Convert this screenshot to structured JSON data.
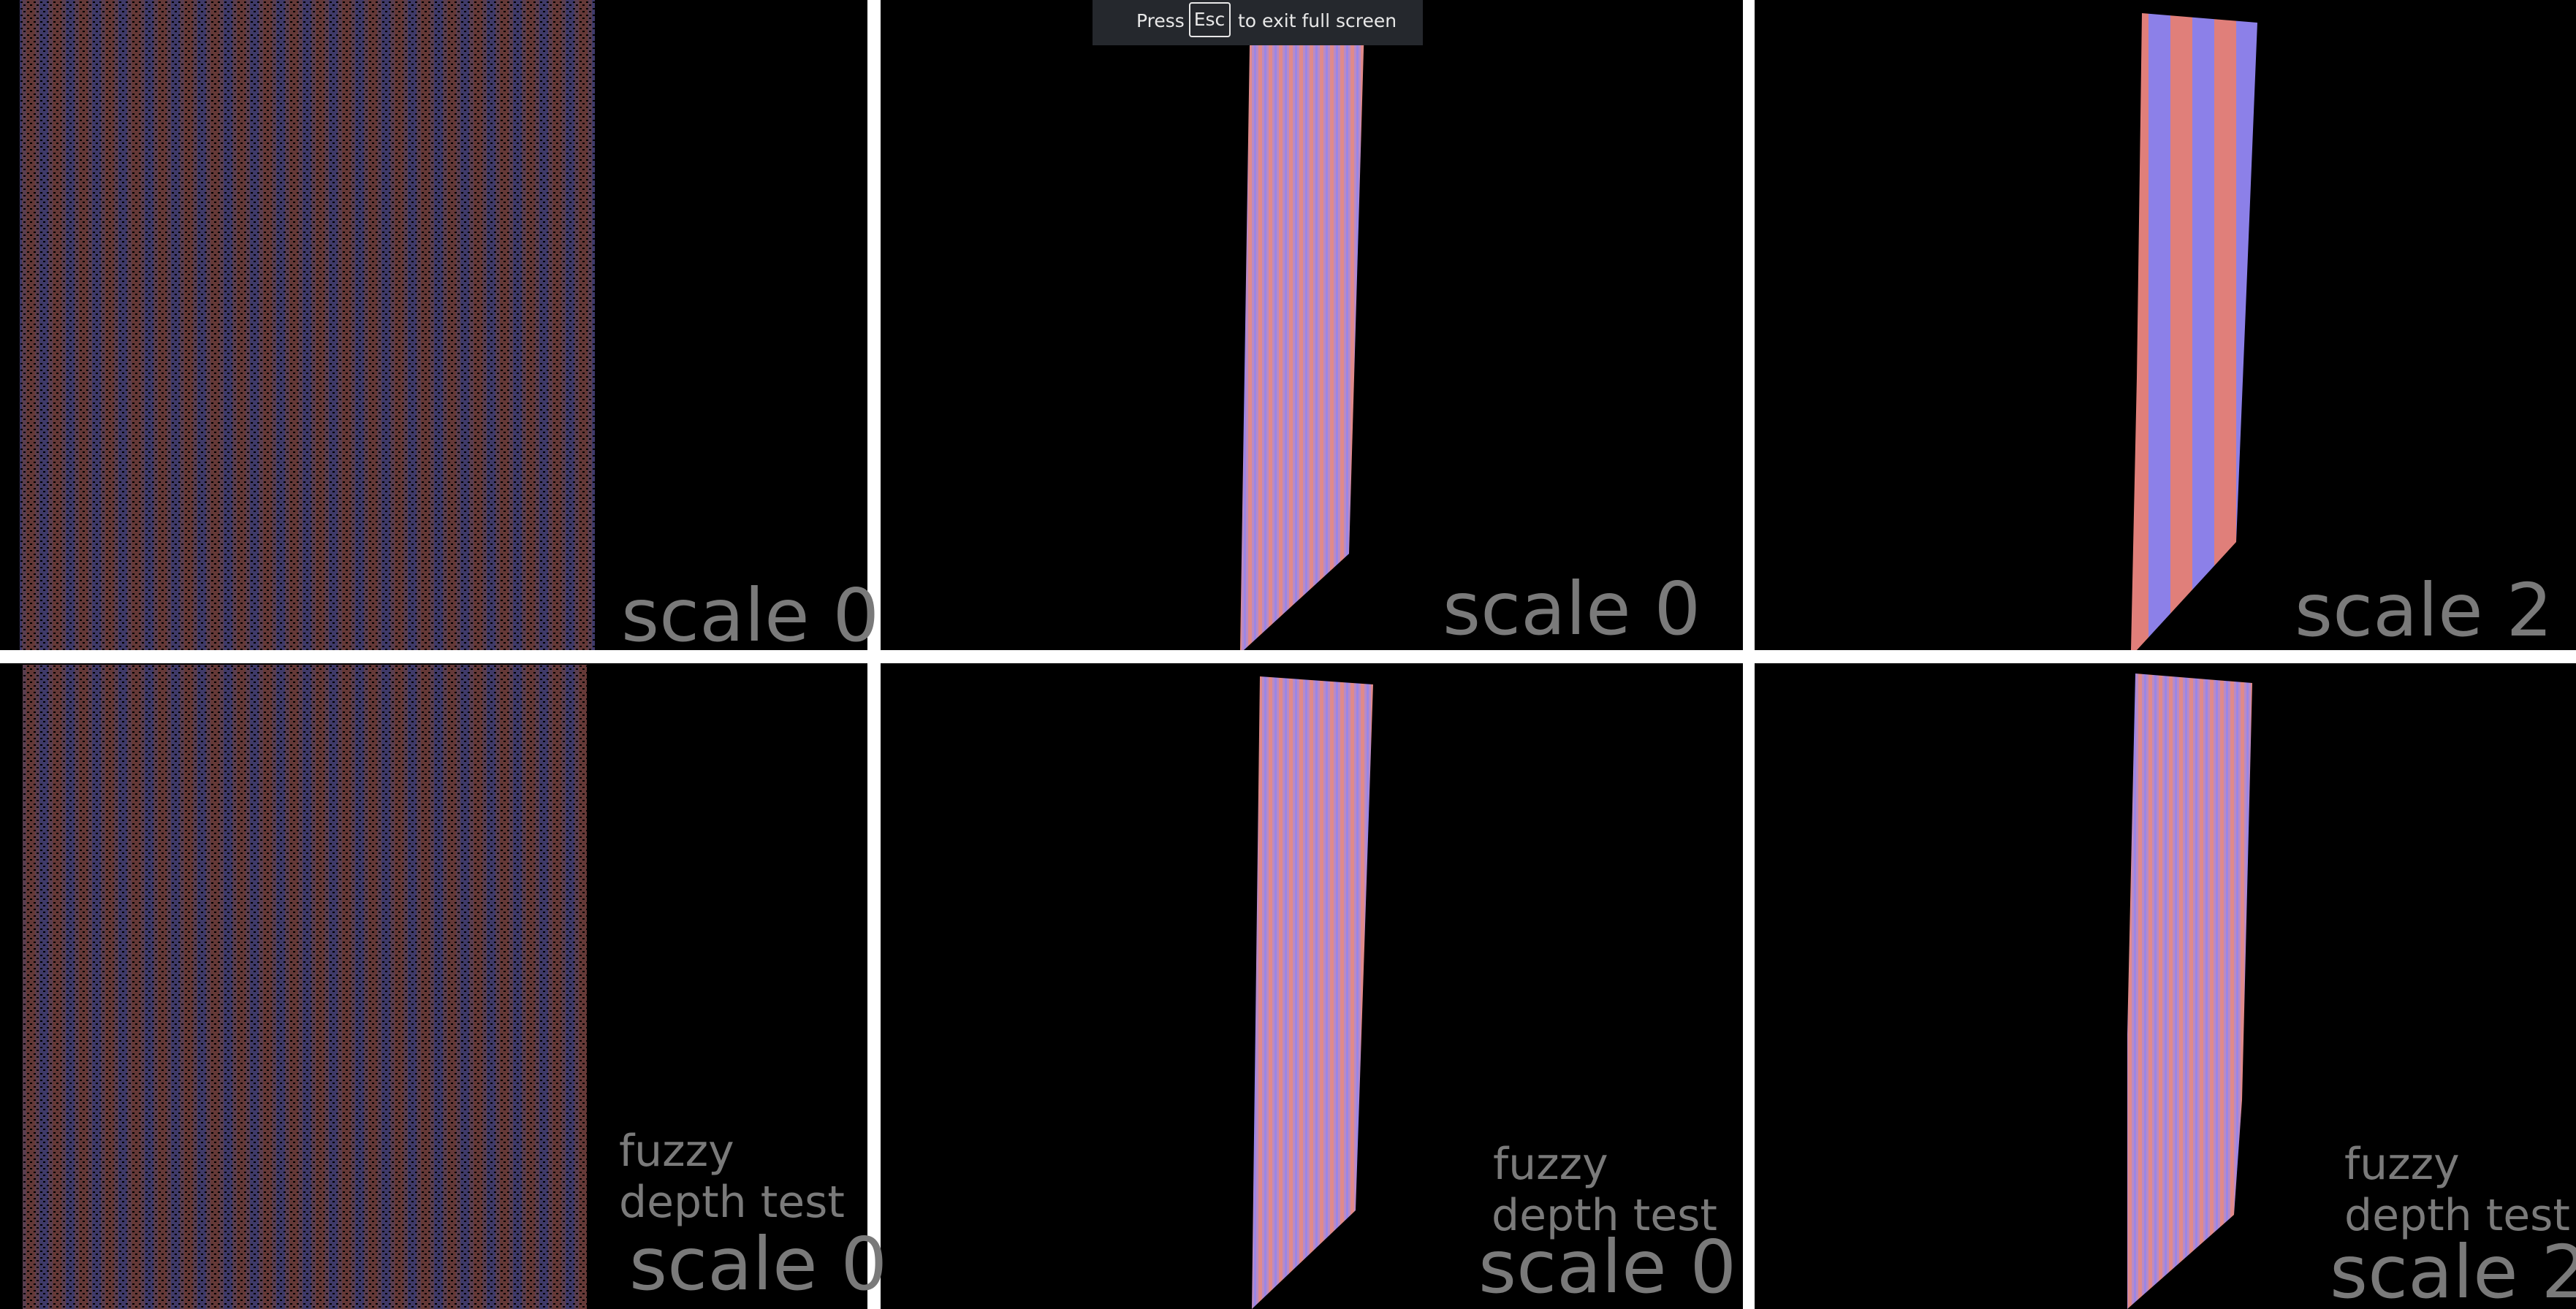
{
  "fullscreen_notice": {
    "before": "Press",
    "key": "Esc",
    "after": "to exit full screen"
  },
  "panels": [
    {
      "lines": [
        "scale 0"
      ]
    },
    {
      "lines": [
        "scale 0"
      ]
    },
    {
      "lines": [
        "scale 2"
      ]
    },
    {
      "lines": [
        "fuzzy",
        "depth test",
        "scale 0"
      ]
    },
    {
      "lines": [
        "fuzzy",
        "depth test",
        "scale 0"
      ]
    },
    {
      "lines": [
        "fuzzy",
        "depth test",
        "scale 2"
      ]
    }
  ]
}
